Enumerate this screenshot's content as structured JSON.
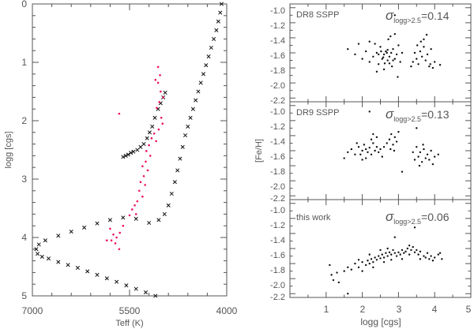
{
  "chart_data": [
    {
      "type": "scatter",
      "id": "hr",
      "xlabel": "Teff (K)",
      "ylabel": "logg [cgs]",
      "xlim": [
        7000,
        4000
      ],
      "ylim": [
        5,
        0
      ],
      "xticks": [
        7000,
        5500,
        4000
      ],
      "xtick_labels": [
        "7000",
        "5500",
        "4000"
      ],
      "yticks": [
        0,
        1,
        2,
        3,
        4,
        5
      ],
      "ytick_labels": [
        "0",
        "1",
        "2",
        "3",
        "4",
        "5"
      ],
      "isochrone_color": "#111111",
      "star_color": "#ee1166",
      "series": [
        {
          "name": "isochrone-rgb",
          "marker": "x",
          "points": [
            [
              4080,
              0.0
            ],
            [
              4100,
              0.15
            ],
            [
              4130,
              0.3
            ],
            [
              4160,
              0.45
            ],
            [
              4200,
              0.6
            ],
            [
              4240,
              0.75
            ],
            [
              4280,
              0.9
            ],
            [
              4320,
              1.05
            ],
            [
              4360,
              1.2
            ],
            [
              4400,
              1.35
            ],
            [
              4440,
              1.5
            ],
            [
              4480,
              1.65
            ],
            [
              4520,
              1.8
            ],
            [
              4560,
              1.95
            ],
            [
              4600,
              2.1
            ],
            [
              4640,
              2.25
            ],
            [
              4680,
              2.45
            ],
            [
              4720,
              2.65
            ],
            [
              4760,
              2.85
            ],
            [
              4800,
              3.05
            ],
            [
              4850,
              3.25
            ],
            [
              4900,
              3.45
            ],
            [
              4960,
              3.6
            ],
            [
              5050,
              3.7
            ],
            [
              5200,
              3.75
            ]
          ]
        },
        {
          "name": "isochrone-subgiant",
          "marker": "x",
          "points": [
            [
              5400,
              3.68
            ],
            [
              5600,
              3.66
            ],
            [
              5800,
              3.7
            ],
            [
              6000,
              3.76
            ],
            [
              6200,
              3.83
            ],
            [
              6400,
              3.9
            ],
            [
              6600,
              3.97
            ],
            [
              6800,
              4.05
            ],
            [
              6900,
              4.12
            ],
            [
              6940,
              4.2
            ],
            [
              6920,
              4.28
            ],
            [
              6850,
              4.33
            ],
            [
              6750,
              4.36
            ],
            [
              6600,
              4.42
            ],
            [
              6450,
              4.47
            ],
            [
              6300,
              4.52
            ],
            [
              6150,
              4.58
            ],
            [
              6000,
              4.64
            ],
            [
              5850,
              4.7
            ],
            [
              5700,
              4.76
            ],
            [
              5550,
              4.82
            ],
            [
              5400,
              4.88
            ],
            [
              5250,
              4.94
            ],
            [
              5100,
              5.0
            ]
          ]
        },
        {
          "name": "isochrone-hb",
          "marker": "x",
          "points": [
            [
              5600,
              2.62
            ],
            [
              5560,
              2.6
            ],
            [
              5520,
              2.58
            ],
            [
              5480,
              2.55
            ],
            [
              5440,
              2.53
            ],
            [
              5380,
              2.5
            ],
            [
              5330,
              2.45
            ],
            [
              5280,
              2.4
            ],
            [
              5230,
              2.3
            ],
            [
              5190,
              2.2
            ],
            [
              5150,
              2.1
            ],
            [
              5110,
              1.95
            ],
            [
              5060,
              1.8
            ],
            [
              5020,
              1.7
            ],
            [
              4980,
              1.6
            ],
            [
              4950,
              1.52
            ]
          ]
        },
        {
          "name": "stars",
          "marker": "dot",
          "points": [
            [
              5660,
              1.88
            ],
            [
              5060,
              1.08
            ],
            [
              5030,
              1.22
            ],
            [
              5060,
              1.35
            ],
            [
              5100,
              1.3
            ],
            [
              5020,
              1.5
            ],
            [
              4980,
              1.6
            ],
            [
              5040,
              1.68
            ],
            [
              5080,
              1.78
            ],
            [
              5010,
              1.95
            ],
            [
              4990,
              2.05
            ],
            [
              5050,
              2.15
            ],
            [
              5120,
              2.22
            ],
            [
              5160,
              2.3
            ],
            [
              5090,
              2.35
            ],
            [
              5200,
              2.42
            ],
            [
              5240,
              2.52
            ],
            [
              5180,
              2.6
            ],
            [
              5250,
              2.7
            ],
            [
              5300,
              2.78
            ],
            [
              5220,
              2.85
            ],
            [
              5280,
              2.95
            ],
            [
              5330,
              3.05
            ],
            [
              5260,
              3.1
            ],
            [
              5350,
              3.2
            ],
            [
              5300,
              3.3
            ],
            [
              5380,
              3.38
            ],
            [
              5420,
              3.45
            ],
            [
              5460,
              3.52
            ],
            [
              5400,
              3.6
            ],
            [
              5500,
              3.62
            ],
            [
              5800,
              3.85
            ],
            [
              5750,
              3.95
            ],
            [
              5700,
              4.0
            ],
            [
              5780,
              4.05
            ],
            [
              5650,
              3.92
            ],
            [
              5720,
              4.1
            ],
            [
              5660,
              4.2
            ],
            [
              5600,
              3.8
            ],
            [
              5850,
              4.05
            ]
          ]
        }
      ]
    },
    {
      "type": "scatter",
      "id": "dr8",
      "label": "DR8 SSPP",
      "sigma_prefix": "σ",
      "sigma_sub": "logg>2.5",
      "sigma_value": "=0.14",
      "xlim": [
        0,
        5
      ],
      "ylim": [
        -2.25,
        -0.95
      ],
      "ytick_labels": [
        "-1.0",
        "-1.2",
        "-1.4",
        "-1.6",
        "-1.8",
        "-2.0",
        "-2.2"
      ],
      "points": [
        [
          1.6,
          -1.55
        ],
        [
          1.8,
          -1.62
        ],
        [
          2.0,
          -1.68
        ],
        [
          2.1,
          -1.58
        ],
        [
          2.2,
          -1.72
        ],
        [
          2.3,
          -1.65
        ],
        [
          2.35,
          -1.48
        ],
        [
          2.4,
          -1.6
        ],
        [
          2.45,
          -1.75
        ],
        [
          2.5,
          -1.52
        ],
        [
          2.55,
          -1.68
        ],
        [
          2.6,
          -1.62
        ],
        [
          2.65,
          -1.58
        ],
        [
          2.7,
          -1.7
        ],
        [
          2.72,
          -1.42
        ],
        [
          2.75,
          -1.65
        ],
        [
          2.8,
          -1.6
        ],
        [
          2.85,
          -1.55
        ],
        [
          2.9,
          -1.68
        ],
        [
          2.95,
          -1.62
        ],
        [
          3.0,
          -1.5
        ],
        [
          3.05,
          -1.72
        ],
        [
          2.78,
          -1.38
        ],
        [
          2.9,
          -1.35
        ],
        [
          2.6,
          -1.82
        ],
        [
          2.4,
          -1.85
        ],
        [
          3.1,
          -1.6
        ],
        [
          2.2,
          -1.45
        ],
        [
          1.9,
          -1.48
        ],
        [
          2.68,
          -1.6
        ],
        [
          2.58,
          -1.66
        ],
        [
          2.52,
          -1.58
        ],
        [
          2.62,
          -1.74
        ],
        [
          2.82,
          -1.78
        ],
        [
          2.98,
          -1.92
        ],
        [
          2.9,
          -1.1
        ],
        [
          3.4,
          -1.72
        ],
        [
          3.5,
          -1.68
        ],
        [
          3.55,
          -1.75
        ],
        [
          3.6,
          -1.58
        ],
        [
          3.65,
          -1.65
        ],
        [
          3.7,
          -1.52
        ],
        [
          3.75,
          -1.7
        ],
        [
          3.8,
          -1.62
        ],
        [
          3.85,
          -1.78
        ],
        [
          3.9,
          -1.55
        ],
        [
          4.0,
          -1.72
        ],
        [
          3.45,
          -1.6
        ],
        [
          3.52,
          -1.5
        ],
        [
          3.62,
          -1.45
        ],
        [
          3.7,
          -1.42
        ],
        [
          3.78,
          -1.36
        ],
        [
          3.88,
          -1.75
        ],
        [
          4.15,
          -1.76
        ],
        [
          3.95,
          -1.8
        ],
        [
          3.35,
          -1.78
        ],
        [
          2.45,
          -1.62
        ],
        [
          2.7,
          -1.56
        ],
        [
          2.75,
          -1.74
        ],
        [
          2.85,
          -1.7
        ]
      ]
    },
    {
      "type": "scatter",
      "id": "dr9",
      "label": "DR9 SSPP",
      "sigma_prefix": "σ",
      "sigma_sub": "logg>2.5",
      "sigma_value": "=0.13",
      "xlim": [
        0,
        5
      ],
      "ylim": [
        -2.25,
        -0.95
      ],
      "ytick_labels": [
        "-1.0",
        "-1.2",
        "-1.4",
        "-1.6",
        "-1.8",
        "-2.0",
        "-2.2"
      ],
      "points": [
        [
          1.5,
          -1.7
        ],
        [
          1.6,
          -1.62
        ],
        [
          1.7,
          -1.58
        ],
        [
          1.8,
          -1.65
        ],
        [
          1.9,
          -1.55
        ],
        [
          2.0,
          -1.6
        ],
        [
          2.05,
          -1.52
        ],
        [
          2.1,
          -1.58
        ],
        [
          2.15,
          -1.62
        ],
        [
          2.2,
          -1.56
        ],
        [
          2.25,
          -1.65
        ],
        [
          2.3,
          -1.5
        ],
        [
          2.35,
          -1.6
        ],
        [
          2.4,
          -1.55
        ],
        [
          2.45,
          -1.62
        ],
        [
          2.5,
          -1.58
        ],
        [
          2.2,
          -1.08
        ],
        [
          2.4,
          -1.42
        ],
        [
          2.3,
          -1.38
        ],
        [
          2.55,
          -1.68
        ],
        [
          2.1,
          -1.7
        ],
        [
          1.95,
          -1.65
        ],
        [
          1.85,
          -1.5
        ],
        [
          2.75,
          -1.45
        ],
        [
          2.8,
          -1.38
        ],
        [
          2.85,
          -1.52
        ],
        [
          2.9,
          -1.42
        ],
        [
          2.95,
          -1.48
        ],
        [
          3.0,
          -1.35
        ],
        [
          2.78,
          -1.58
        ],
        [
          2.88,
          -1.6
        ],
        [
          2.68,
          -1.5
        ],
        [
          3.1,
          -1.88
        ],
        [
          3.4,
          -1.62
        ],
        [
          3.45,
          -1.72
        ],
        [
          3.5,
          -1.55
        ],
        [
          3.55,
          -1.68
        ],
        [
          3.6,
          -1.62
        ],
        [
          3.65,
          -1.75
        ],
        [
          3.7,
          -1.58
        ],
        [
          3.75,
          -1.7
        ],
        [
          3.8,
          -1.65
        ],
        [
          3.85,
          -1.72
        ],
        [
          3.9,
          -1.6
        ],
        [
          4.0,
          -1.68
        ],
        [
          4.1,
          -1.65
        ],
        [
          3.5,
          -1.3
        ],
        [
          3.68,
          -1.52
        ],
        [
          3.95,
          -1.78
        ],
        [
          3.58,
          -1.8
        ],
        [
          2.6,
          -1.55
        ],
        [
          2.0,
          -1.72
        ],
        [
          2.25,
          -1.45
        ]
      ]
    },
    {
      "type": "scatter",
      "id": "thiswork",
      "label": "this work",
      "sigma_prefix": "σ",
      "sigma_sub": "logg>2.5",
      "sigma_value": "=0.06",
      "xlabel": "logg [cgs]",
      "ylabel": "[Fe/H]",
      "xlim": [
        0,
        5
      ],
      "ylim": [
        -2.25,
        -0.95
      ],
      "xticks": [
        1,
        2,
        3,
        4,
        5
      ],
      "xtick_labels": [
        "1",
        "2",
        "3",
        "4",
        "5"
      ],
      "ytick_labels": [
        "-1.0",
        "-1.2",
        "-1.4",
        "-1.6",
        "-1.8",
        "-2.0",
        "-2.2"
      ],
      "points": [
        [
          1.1,
          -1.82
        ],
        [
          1.15,
          -1.95
        ],
        [
          1.2,
          -2.02
        ],
        [
          1.3,
          -1.92
        ],
        [
          1.35,
          -2.05
        ],
        [
          1.5,
          -1.9
        ],
        [
          1.6,
          -1.85
        ],
        [
          1.7,
          -1.88
        ],
        [
          1.8,
          -1.8
        ],
        [
          1.9,
          -1.85
        ],
        [
          2.0,
          -1.78
        ],
        [
          2.1,
          -1.82
        ],
        [
          2.15,
          -1.76
        ],
        [
          2.2,
          -1.8
        ],
        [
          2.25,
          -1.74
        ],
        [
          2.3,
          -1.78
        ],
        [
          2.35,
          -1.72
        ],
        [
          2.4,
          -1.75
        ],
        [
          2.45,
          -1.7
        ],
        [
          2.5,
          -1.73
        ],
        [
          2.55,
          -1.68
        ],
        [
          2.6,
          -1.72
        ],
        [
          2.65,
          -1.66
        ],
        [
          2.7,
          -1.7
        ],
        [
          2.75,
          -1.65
        ],
        [
          2.8,
          -1.68
        ],
        [
          2.85,
          -1.62
        ],
        [
          2.9,
          -1.66
        ],
        [
          2.95,
          -1.7
        ],
        [
          3.0,
          -1.65
        ],
        [
          3.05,
          -1.68
        ],
        [
          3.1,
          -1.62
        ],
        [
          3.15,
          -1.66
        ],
        [
          3.2,
          -1.64
        ],
        [
          3.25,
          -1.6
        ],
        [
          3.3,
          -1.68
        ],
        [
          3.35,
          -1.62
        ],
        [
          3.4,
          -1.58
        ],
        [
          3.45,
          -1.65
        ],
        [
          3.5,
          -1.62
        ],
        [
          3.55,
          -1.68
        ],
        [
          3.6,
          -1.64
        ],
        [
          3.7,
          -1.7
        ],
        [
          3.75,
          -1.72
        ],
        [
          3.8,
          -1.66
        ],
        [
          3.85,
          -1.74
        ],
        [
          3.9,
          -1.7
        ],
        [
          4.0,
          -1.72
        ],
        [
          4.1,
          -1.68
        ],
        [
          4.2,
          -1.74
        ],
        [
          3.45,
          -1.32
        ],
        [
          2.9,
          -1.45
        ],
        [
          1.6,
          -2.2
        ],
        [
          2.3,
          -1.85
        ],
        [
          2.6,
          -1.78
        ],
        [
          2.8,
          -1.75
        ],
        [
          3.1,
          -1.74
        ],
        [
          3.6,
          -1.74
        ],
        [
          2.0,
          -1.9
        ],
        [
          1.9,
          -1.75
        ],
        [
          2.7,
          -1.6
        ],
        [
          3.3,
          -1.56
        ],
        [
          3.95,
          -1.76
        ],
        [
          4.15,
          -1.66
        ],
        [
          2.5,
          -1.62
        ],
        [
          2.2,
          -1.68
        ]
      ]
    }
  ]
}
